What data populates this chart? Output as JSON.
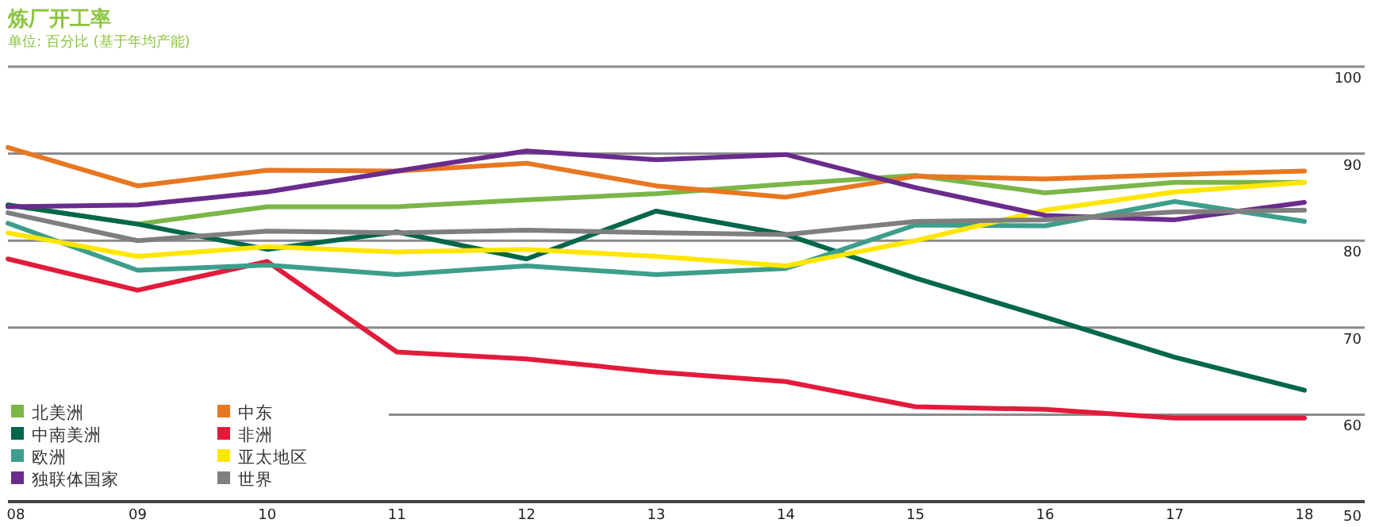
{
  "chart_data": {
    "type": "line",
    "title": "炼厂开工率",
    "subtitle": "单位: 百分比 (基于年均产能)",
    "categories": [
      "08",
      "09",
      "10",
      "11",
      "12",
      "13",
      "14",
      "15",
      "16",
      "17",
      "18"
    ],
    "ylim": [
      50,
      100
    ],
    "yticks": [
      50,
      60,
      70,
      80,
      90,
      100
    ],
    "grid": "y",
    "legend": "bottom left",
    "series": [
      {
        "name": "北美洲",
        "color": "#7ab648",
        "values": [
          84.1,
          81.9,
          83.9,
          83.9,
          84.7,
          85.4,
          86.5,
          87.5,
          85.5,
          86.7,
          86.7
        ]
      },
      {
        "name": "中东",
        "color": "#e87722",
        "values": [
          90.7,
          86.3,
          88.1,
          88.0,
          88.9,
          86.3,
          85.0,
          87.4,
          87.1,
          87.6,
          88.0
        ]
      },
      {
        "name": "中南美洲",
        "color": "#00674b",
        "values": [
          84.1,
          81.9,
          79.0,
          81.0,
          77.9,
          83.4,
          80.7,
          75.7,
          71.2,
          66.6,
          62.8
        ]
      },
      {
        "name": "非洲",
        "color": "#e31b3b",
        "values": [
          77.9,
          74.3,
          77.6,
          67.2,
          66.4,
          64.9,
          63.8,
          60.9,
          60.6,
          59.6,
          59.6
        ]
      },
      {
        "name": "欧洲",
        "color": "#3d9e8c",
        "values": [
          82.0,
          76.6,
          77.2,
          76.1,
          77.1,
          76.1,
          76.8,
          81.8,
          81.7,
          84.5,
          82.2
        ]
      },
      {
        "name": "亚太地区",
        "color": "#ffe600",
        "values": [
          80.9,
          78.2,
          79.3,
          78.7,
          79.0,
          78.2,
          77.1,
          80.0,
          83.5,
          85.6,
          86.7
        ]
      },
      {
        "name": "独联体国家",
        "color": "#6a2c8c",
        "values": [
          83.9,
          84.1,
          85.6,
          88.0,
          90.3,
          89.3,
          89.9,
          86.1,
          82.9,
          82.4,
          84.4
        ]
      },
      {
        "name": "世界",
        "color": "#7f7f7f",
        "values": [
          83.2,
          80.0,
          81.1,
          80.9,
          81.2,
          80.9,
          80.7,
          82.2,
          82.4,
          83.3,
          83.5
        ]
      }
    ]
  }
}
